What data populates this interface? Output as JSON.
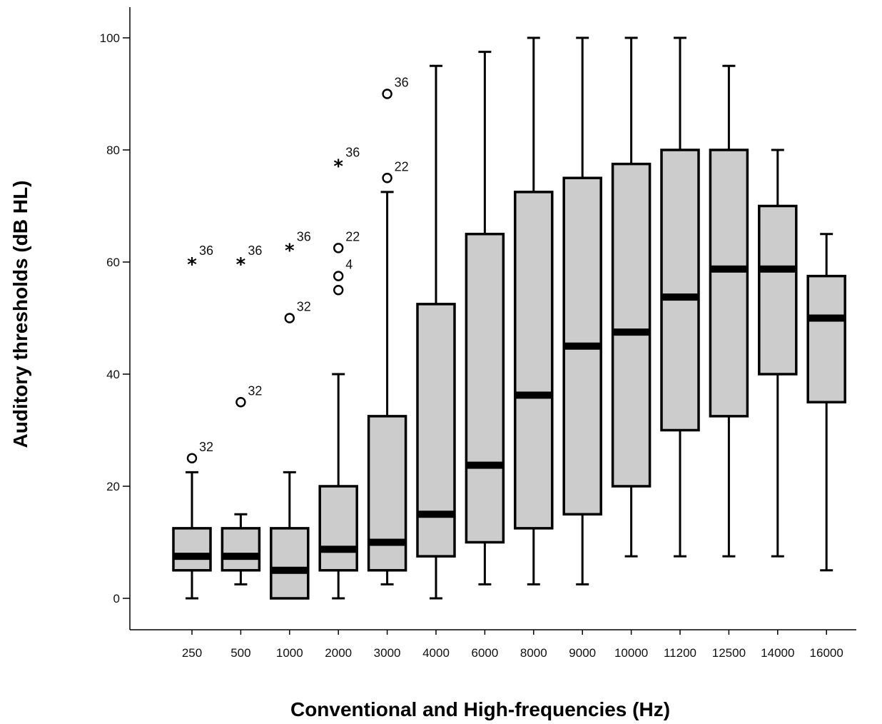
{
  "chart_data": {
    "type": "boxplot",
    "title": "",
    "xlabel": "Conventional and High-frequencies (Hz)",
    "ylabel": "Auditory  thresholds (dB HL)",
    "ylim": [
      -5,
      106
    ],
    "yticks": [
      0,
      20,
      40,
      60,
      80,
      100
    ],
    "grid": false,
    "colors": {
      "box_fill": "#cccccc",
      "stroke": "#000000"
    },
    "categories": [
      "250",
      "500",
      "1000",
      "2000",
      "3000",
      "4000",
      "6000",
      "8000",
      "9000",
      "10000",
      "11200",
      "12500",
      "14000",
      "16000"
    ],
    "boxes": [
      {
        "category": "250",
        "whisker_low": 0,
        "q1": 5,
        "median": 7.5,
        "q3": 12.5,
        "whisker_high": 22.5
      },
      {
        "category": "500",
        "whisker_low": 2.5,
        "q1": 5,
        "median": 7.5,
        "q3": 12.5,
        "whisker_high": 15
      },
      {
        "category": "1000",
        "whisker_low": 0,
        "q1": 0,
        "median": 5,
        "q3": 12.5,
        "whisker_high": 22.5
      },
      {
        "category": "2000",
        "whisker_low": 0,
        "q1": 5,
        "median": 8.75,
        "q3": 20,
        "whisker_high": 40
      },
      {
        "category": "3000",
        "whisker_low": 2.5,
        "q1": 5,
        "median": 10,
        "q3": 32.5,
        "whisker_high": 72.5
      },
      {
        "category": "4000",
        "whisker_low": 0,
        "q1": 7.5,
        "median": 15,
        "q3": 52.5,
        "whisker_high": 95
      },
      {
        "category": "6000",
        "whisker_low": 2.5,
        "q1": 10,
        "median": 23.75,
        "q3": 65,
        "whisker_high": 97.5
      },
      {
        "category": "8000",
        "whisker_low": 2.5,
        "q1": 12.5,
        "median": 36.25,
        "q3": 72.5,
        "whisker_high": 100
      },
      {
        "category": "9000",
        "whisker_low": 2.5,
        "q1": 15,
        "median": 45,
        "q3": 75,
        "whisker_high": 100
      },
      {
        "category": "10000",
        "whisker_low": 7.5,
        "q1": 20,
        "median": 47.5,
        "q3": 77.5,
        "whisker_high": 100
      },
      {
        "category": "11200",
        "whisker_low": 7.5,
        "q1": 30,
        "median": 53.75,
        "q3": 80,
        "whisker_high": 100
      },
      {
        "category": "12500",
        "whisker_low": 7.5,
        "q1": 32.5,
        "median": 58.75,
        "q3": 80,
        "whisker_high": 95
      },
      {
        "category": "14000",
        "whisker_low": 7.5,
        "q1": 40,
        "median": 58.75,
        "q3": 70,
        "whisker_high": 80
      },
      {
        "category": "16000",
        "whisker_low": 5,
        "q1": 35,
        "median": 50,
        "q3": 57.5,
        "whisker_high": 65
      }
    ],
    "outliers": [
      {
        "category": "250",
        "value": 25,
        "marker": "circle",
        "label": "32"
      },
      {
        "category": "250",
        "value": 60,
        "marker": "star",
        "label": "36"
      },
      {
        "category": "500",
        "value": 35,
        "marker": "circle",
        "label": "32"
      },
      {
        "category": "500",
        "value": 60,
        "marker": "star",
        "label": "36"
      },
      {
        "category": "1000",
        "value": 50,
        "marker": "circle",
        "label": "32"
      },
      {
        "category": "1000",
        "value": 62.5,
        "marker": "star",
        "label": "36"
      },
      {
        "category": "2000",
        "value": 55,
        "marker": "circle",
        "label": ""
      },
      {
        "category": "2000",
        "value": 57.5,
        "marker": "circle",
        "label": "4"
      },
      {
        "category": "2000",
        "value": 62.5,
        "marker": "circle",
        "label": "22"
      },
      {
        "category": "2000",
        "value": 77.5,
        "marker": "star",
        "label": "36"
      },
      {
        "category": "3000",
        "value": 75,
        "marker": "circle",
        "label": "22"
      },
      {
        "category": "3000",
        "value": 90,
        "marker": "circle",
        "label": "36"
      }
    ]
  }
}
